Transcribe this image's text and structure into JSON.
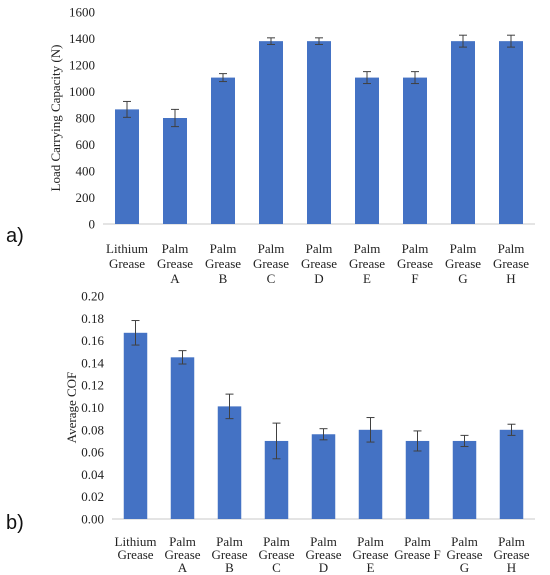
{
  "chart_data": [
    {
      "type": "bar",
      "panel_label": "a)",
      "ylabel": "Load Carrying Capacity (N)",
      "ylim": [
        0,
        1600
      ],
      "yticks": [
        "0",
        "200",
        "400",
        "600",
        "800",
        "1000",
        "1200",
        "1400",
        "1600"
      ],
      "ytick_values": [
        0,
        200,
        400,
        600,
        800,
        1000,
        1200,
        1400,
        1600
      ],
      "categories": [
        [
          "Lithium",
          "Grease"
        ],
        [
          "Palm",
          "Grease",
          "A"
        ],
        [
          "Palm",
          "Grease",
          "B"
        ],
        [
          "Palm",
          "Grease",
          "C"
        ],
        [
          "Palm",
          "Grease",
          "D"
        ],
        [
          "Palm",
          "Grease",
          "E"
        ],
        [
          "Palm",
          "Grease",
          "F"
        ],
        [
          "Palm",
          "Grease",
          "G"
        ],
        [
          "Palm",
          "Grease",
          "H"
        ]
      ],
      "values": [
        865,
        800,
        1105,
        1380,
        1380,
        1105,
        1105,
        1380,
        1380
      ],
      "errors": [
        60,
        65,
        30,
        25,
        25,
        45,
        45,
        45,
        45
      ],
      "color": "#4472C4",
      "grid": false
    },
    {
      "type": "bar",
      "panel_label": "b)",
      "ylabel": "Average COF",
      "ylim": [
        0,
        0.2
      ],
      "yticks": [
        "0.00",
        "0.02",
        "0.04",
        "0.06",
        "0.08",
        "0.10",
        "0.12",
        "0.14",
        "0.16",
        "0.18",
        "0.20"
      ],
      "ytick_values": [
        0,
        0.02,
        0.04,
        0.06,
        0.08,
        0.1,
        0.12,
        0.14,
        0.16,
        0.18,
        0.2
      ],
      "categories": [
        [
          "Lithium",
          "Grease"
        ],
        [
          "Palm",
          "Grease",
          "A"
        ],
        [
          "Palm",
          "Grease",
          "B"
        ],
        [
          "Palm",
          "Grease",
          "C"
        ],
        [
          "Palm",
          "Grease",
          "D"
        ],
        [
          "Palm",
          "Grease",
          "E"
        ],
        [
          "Palm",
          "Grease F"
        ],
        [
          "Palm",
          "Grease",
          "G"
        ],
        [
          "Palm",
          "Grease",
          "H"
        ]
      ],
      "values": [
        0.167,
        0.145,
        0.101,
        0.07,
        0.076,
        0.08,
        0.07,
        0.07,
        0.08
      ],
      "errors": [
        0.011,
        0.006,
        0.011,
        0.016,
        0.005,
        0.011,
        0.009,
        0.005,
        0.005
      ],
      "color": "#4472C4",
      "grid": false
    }
  ]
}
